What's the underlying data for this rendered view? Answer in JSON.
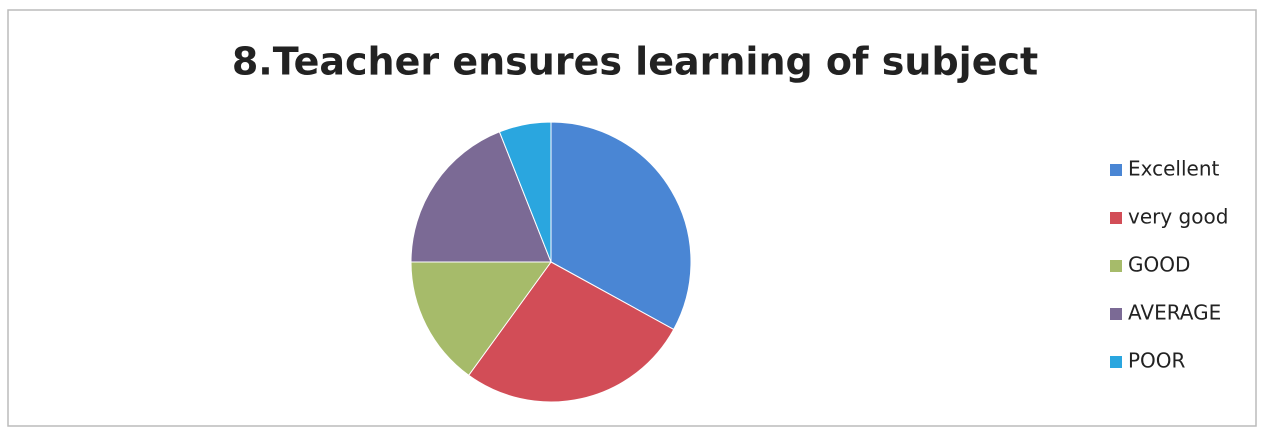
{
  "chart_data": {
    "type": "pie",
    "title": "8.Teacher ensures learning of subject",
    "categories": [
      "Excellent",
      "very good",
      "GOOD",
      "AVERAGE",
      "POOR"
    ],
    "values": [
      33,
      27,
      15,
      19,
      6
    ],
    "colors": [
      "#4a86d4",
      "#d24d57",
      "#a6bb6a",
      "#7b6a95",
      "#2aa6df"
    ],
    "legend": "right"
  }
}
